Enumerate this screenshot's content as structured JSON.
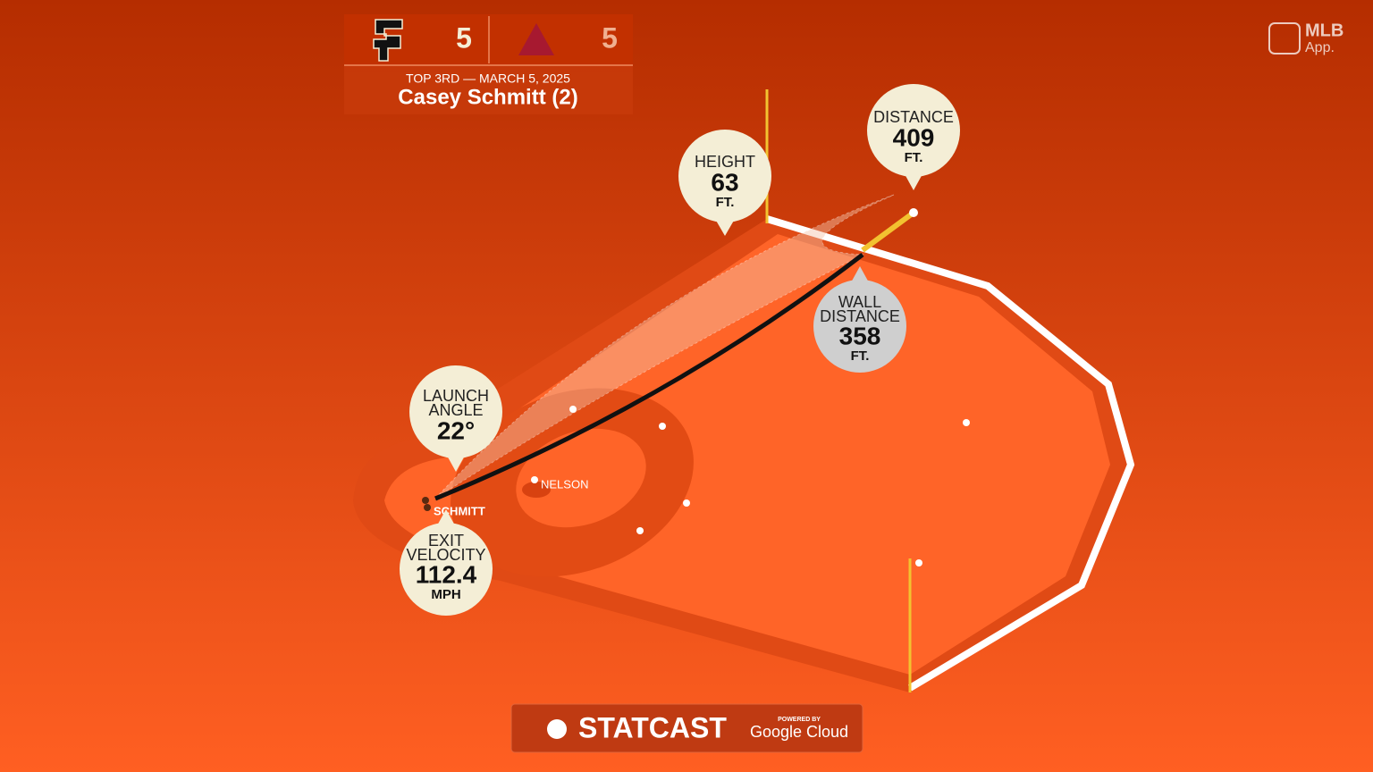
{
  "scoreboard": {
    "home_score": "5",
    "away_score": "5",
    "situation": "TOP 3RD — MARCH 5, 2025",
    "batter": "Casey Schmitt (2)"
  },
  "callouts": [
    {
      "label": "HEIGHT",
      "value": "63",
      "unit": "FT."
    },
    {
      "label": "DISTANCE",
      "value": "409",
      "unit": "FT."
    },
    {
      "label": "WALL DISTANCE",
      "value": "358",
      "unit": "FT."
    },
    {
      "label": "LAUNCH ANGLE",
      "value": "22°"
    },
    {
      "label": "EXIT VELOCITY",
      "value": "112.4",
      "unit": "MPH"
    }
  ],
  "players": [
    "NELSON",
    "SCHMITT"
  ],
  "branding": {
    "app_line1": "MLB",
    "app_line2": "App.",
    "statcast": "STATCAST",
    "powered_by": "POWERED BY",
    "google": "Google Cloud"
  }
}
